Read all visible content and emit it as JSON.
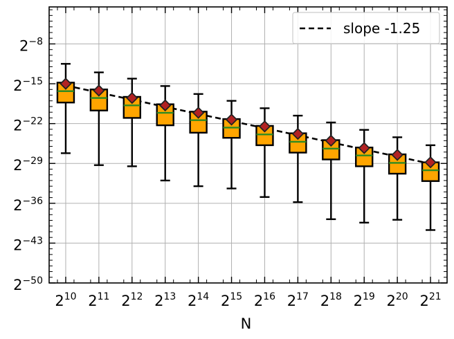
{
  "chart_data": {
    "type": "box",
    "title": "",
    "xlabel": "N",
    "ylabel": "",
    "x_scale": "log2",
    "y_scale": "log2",
    "x_exponents": [
      10,
      11,
      12,
      13,
      14,
      15,
      16,
      17,
      18,
      19,
      20,
      21
    ],
    "x_tick_labels": [
      "2^10",
      "2^11",
      "2^12",
      "2^13",
      "2^14",
      "2^15",
      "2^16",
      "2^17",
      "2^18",
      "2^19",
      "2^20",
      "2^21"
    ],
    "y_tick_exponents": [
      -8,
      -15,
      -22,
      -29,
      -36,
      -43,
      -50
    ],
    "y_tick_labels": [
      "2^-8",
      "2^-15",
      "2^-22",
      "2^-29",
      "2^-36",
      "2^-43",
      "2^-50"
    ],
    "ylim_exponent": [
      -50,
      -1.5
    ],
    "grid": true,
    "legend": {
      "position": "top-right",
      "entries": [
        "slope -1.25"
      ]
    },
    "box_stats_log2": [
      {
        "x_exp": 10,
        "whisker_low": -27.2,
        "q1": -18.3,
        "median": -16.3,
        "q3": -14.8,
        "whisker_high": -11.5,
        "mean": -15.0
      },
      {
        "x_exp": 11,
        "whisker_low": -29.3,
        "q1": -19.7,
        "median": -17.5,
        "q3": -16.0,
        "whisker_high": -13.0,
        "mean": -16.2
      },
      {
        "x_exp": 12,
        "whisker_low": -29.5,
        "q1": -21.0,
        "median": -18.8,
        "q3": -17.3,
        "whisker_high": -14.1,
        "mean": -17.5
      },
      {
        "x_exp": 13,
        "whisker_low": -32.0,
        "q1": -22.3,
        "median": -20.1,
        "q3": -18.6,
        "whisker_high": -15.4,
        "mean": -18.8
      },
      {
        "x_exp": 14,
        "whisker_low": -33.0,
        "q1": -23.6,
        "median": -21.4,
        "q3": -19.9,
        "whisker_high": -16.8,
        "mean": -20.1
      },
      {
        "x_exp": 15,
        "whisker_low": -33.4,
        "q1": -24.5,
        "median": -22.7,
        "q3": -21.2,
        "whisker_high": -18.0,
        "mean": -21.3
      },
      {
        "x_exp": 16,
        "whisker_low": -34.9,
        "q1": -25.8,
        "median": -23.9,
        "q3": -22.4,
        "whisker_high": -19.3,
        "mean": -22.5
      },
      {
        "x_exp": 17,
        "whisker_low": -35.8,
        "q1": -27.1,
        "median": -25.2,
        "q3": -23.7,
        "whisker_high": -20.6,
        "mean": -23.8
      },
      {
        "x_exp": 18,
        "whisker_low": -38.8,
        "q1": -28.3,
        "median": -26.4,
        "q3": -24.9,
        "whisker_high": -21.8,
        "mean": -25.0
      },
      {
        "x_exp": 19,
        "whisker_low": -39.4,
        "q1": -29.5,
        "median": -27.6,
        "q3": -26.2,
        "whisker_high": -23.1,
        "mean": -26.3
      },
      {
        "x_exp": 20,
        "whisker_low": -38.9,
        "q1": -30.8,
        "median": -28.9,
        "q3": -27.4,
        "whisker_high": -24.4,
        "mean": -27.5
      },
      {
        "x_exp": 21,
        "whisker_low": -40.7,
        "q1": -32.1,
        "median": -30.2,
        "q3": -28.8,
        "whisker_high": -25.8,
        "mean": -28.8
      }
    ],
    "reference_line": {
      "label": "slope -1.25",
      "slope": -1.25,
      "points_log2": [
        [
          10,
          -15.3
        ],
        [
          21,
          -29.05
        ]
      ]
    },
    "colors": {
      "box_fill": "#ffa500",
      "box_edge": "#000000",
      "median": "#2e8b22",
      "mean_marker": "#b22222",
      "reference_line": "#000000",
      "grid": "#b0b0b0"
    }
  }
}
